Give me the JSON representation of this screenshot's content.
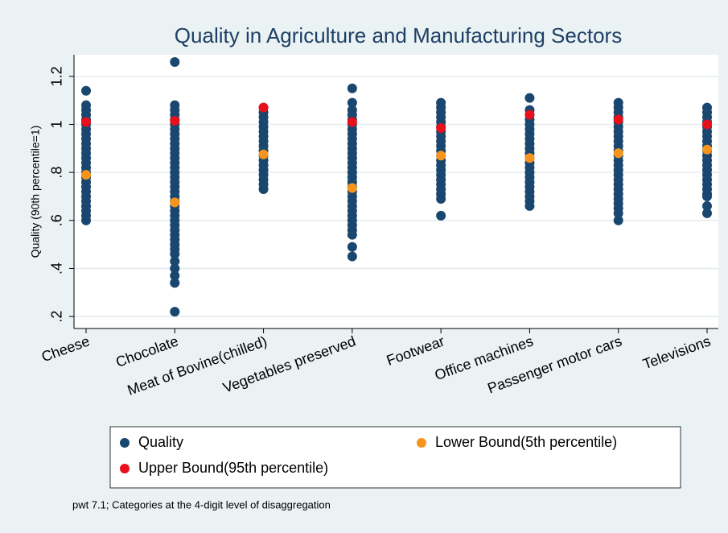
{
  "chart_data": {
    "type": "strip",
    "title": "Quality in Agriculture and Manufacturing Sectors",
    "ylabel": "Quality (90th percentile=1)",
    "note": "pwt 7.1; Categories at the 4-digit level of disaggregation",
    "categories": [
      "Cheese",
      "Chocolate",
      "Meat of Bovine(chilled)",
      "Vegetables preserved",
      "Footwear",
      "Office machines",
      "Passenger motor cars",
      "Televisions"
    ],
    "series": [
      {
        "name": "Quality",
        "color": "#1a476f",
        "values": [
          [
            1.14,
            1.08,
            1.06,
            1.04,
            1.02,
            1.0,
            0.98,
            0.96,
            0.94,
            0.92,
            0.9,
            0.88,
            0.86,
            0.84,
            0.82,
            0.8,
            0.78,
            0.76,
            0.74,
            0.72,
            0.7,
            0.68,
            0.66,
            0.64,
            0.62,
            0.6
          ],
          [
            1.26,
            1.08,
            1.06,
            1.04,
            1.02,
            1.0,
            0.98,
            0.96,
            0.94,
            0.92,
            0.9,
            0.88,
            0.86,
            0.84,
            0.82,
            0.8,
            0.78,
            0.76,
            0.74,
            0.72,
            0.7,
            0.68,
            0.66,
            0.64,
            0.62,
            0.6,
            0.58,
            0.56,
            0.54,
            0.52,
            0.5,
            0.48,
            0.46,
            0.43,
            0.4,
            0.37,
            0.34,
            0.22
          ],
          [
            1.07,
            1.05,
            1.03,
            1.01,
            0.99,
            0.97,
            0.95,
            0.93,
            0.91,
            0.89,
            0.87,
            0.85,
            0.83,
            0.81,
            0.79,
            0.77,
            0.75,
            0.73
          ],
          [
            1.15,
            1.09,
            1.06,
            1.04,
            1.02,
            1.0,
            0.98,
            0.96,
            0.94,
            0.92,
            0.9,
            0.88,
            0.86,
            0.84,
            0.82,
            0.8,
            0.78,
            0.76,
            0.74,
            0.72,
            0.7,
            0.68,
            0.66,
            0.64,
            0.62,
            0.6,
            0.58,
            0.56,
            0.54,
            0.49,
            0.45
          ],
          [
            1.09,
            1.07,
            1.05,
            1.03,
            1.01,
            0.99,
            0.97,
            0.95,
            0.93,
            0.91,
            0.89,
            0.87,
            0.85,
            0.83,
            0.81,
            0.79,
            0.77,
            0.75,
            0.73,
            0.71,
            0.69,
            0.62
          ],
          [
            1.11,
            1.06,
            1.04,
            1.02,
            1.0,
            0.98,
            0.96,
            0.94,
            0.92,
            0.9,
            0.88,
            0.86,
            0.84,
            0.82,
            0.8,
            0.78,
            0.76,
            0.74,
            0.72,
            0.7,
            0.68,
            0.66
          ],
          [
            1.09,
            1.07,
            1.05,
            1.03,
            1.01,
            0.99,
            0.97,
            0.95,
            0.93,
            0.91,
            0.89,
            0.87,
            0.85,
            0.83,
            0.81,
            0.79,
            0.77,
            0.75,
            0.73,
            0.71,
            0.69,
            0.67,
            0.65,
            0.63,
            0.6
          ],
          [
            1.07,
            1.05,
            1.03,
            1.01,
            0.99,
            0.97,
            0.95,
            0.93,
            0.91,
            0.89,
            0.87,
            0.85,
            0.83,
            0.81,
            0.79,
            0.77,
            0.75,
            0.73,
            0.71,
            0.7,
            0.66,
            0.63
          ]
        ]
      },
      {
        "name": "Lower Bound(5th percentile)",
        "color": "#f7941d",
        "values": [
          0.79,
          0.675,
          0.875,
          0.735,
          0.87,
          0.86,
          0.88,
          0.895
        ]
      },
      {
        "name": "Upper Bound(95th percentile)",
        "color": "#e8101a",
        "values": [
          1.01,
          1.015,
          1.07,
          1.01,
          0.985,
          1.04,
          1.02,
          1.0
        ]
      }
    ],
    "ylim": [
      0.15,
      1.29
    ],
    "yticks": [
      {
        "value": 0.2,
        "label": ".2"
      },
      {
        "value": 0.4,
        "label": ".4"
      },
      {
        "value": 0.6,
        "label": ".6"
      },
      {
        "value": 0.8,
        "label": ".8"
      },
      1,
      {
        "value": 1.2,
        "label": "1.2"
      }
    ],
    "grid": true,
    "legend_position": "bottom"
  }
}
